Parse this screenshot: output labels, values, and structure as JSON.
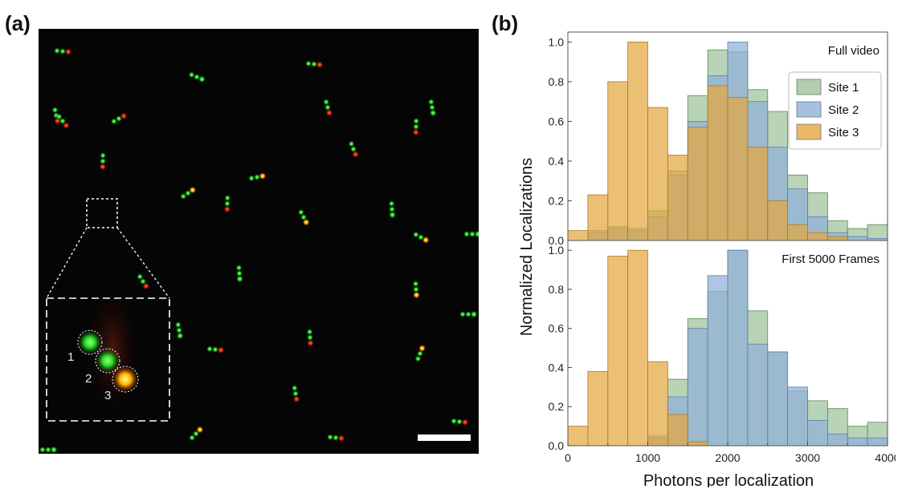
{
  "panel_a": {
    "label": "(a)",
    "inset_site_labels": [
      "1",
      "2",
      "3"
    ]
  },
  "panel_b": {
    "label": "(b)"
  },
  "colors": {
    "site1": "#9ec29a",
    "site2": "#8fb0d9",
    "site3": "#e3a63e",
    "background_microscopy": "#050505"
  },
  "chart_data": [
    {
      "type": "bar",
      "title": "Full video",
      "xlabel": "Photons per localization",
      "ylabel": "Normalized Localizations",
      "xlim": [
        0,
        4000
      ],
      "ylim": [
        0,
        1.05
      ],
      "bin_edges": [
        0,
        250,
        500,
        750,
        1000,
        1250,
        1500,
        1750,
        2000,
        2250,
        2500,
        2750,
        3000,
        3250,
        3500,
        3750,
        4000
      ],
      "x_ticks": [
        "0",
        "1000",
        "2000",
        "3000",
        "4000"
      ],
      "y_ticks": [
        "0.0",
        "0.2",
        "0.4",
        "0.6",
        "0.8",
        "1.0"
      ],
      "legend_position": "upper-right",
      "series": [
        {
          "name": "Site 1",
          "values": [
            0.0,
            0.05,
            0.07,
            0.06,
            0.15,
            0.35,
            0.73,
            0.96,
            0.95,
            0.76,
            0.65,
            0.33,
            0.24,
            0.1,
            0.06,
            0.08,
            0.02
          ]
        },
        {
          "name": "Site 2",
          "values": [
            0.0,
            0.04,
            0.06,
            0.05,
            0.12,
            0.33,
            0.6,
            0.83,
            1.0,
            0.7,
            0.47,
            0.26,
            0.12,
            0.04,
            0.02,
            0.01,
            0.0
          ]
        },
        {
          "name": "Site 3",
          "values": [
            0.05,
            0.23,
            0.8,
            1.0,
            0.67,
            0.43,
            0.57,
            0.78,
            0.72,
            0.47,
            0.2,
            0.08,
            0.04,
            0.02,
            0.0,
            0.0,
            0.0
          ]
        }
      ]
    },
    {
      "type": "bar",
      "title": "First 5000 Frames",
      "xlabel": "Photons per localization",
      "ylabel": "Normalized Localizations",
      "xlim": [
        0,
        4000
      ],
      "ylim": [
        0,
        1.05
      ],
      "bin_edges": [
        0,
        250,
        500,
        750,
        1000,
        1250,
        1500,
        1750,
        2000,
        2250,
        2500,
        2750,
        3000,
        3250,
        3500,
        3750,
        4000
      ],
      "x_ticks": [
        "0",
        "1000",
        "2000",
        "3000",
        "4000"
      ],
      "y_ticks": [
        "0.0",
        "0.2",
        "0.4",
        "0.6",
        "0.8",
        "1.0"
      ],
      "series": [
        {
          "name": "Site 1",
          "values": [
            0.0,
            0.0,
            0.0,
            0.0,
            0.05,
            0.34,
            0.65,
            0.79,
            1.0,
            0.69,
            0.48,
            0.28,
            0.23,
            0.19,
            0.1,
            0.12,
            0.04
          ]
        },
        {
          "name": "Site 2",
          "values": [
            0.0,
            0.0,
            0.0,
            0.0,
            0.04,
            0.25,
            0.6,
            0.87,
            1.0,
            0.52,
            0.48,
            0.3,
            0.13,
            0.06,
            0.04,
            0.04,
            0.01
          ]
        },
        {
          "name": "Site 3",
          "values": [
            0.1,
            0.38,
            0.97,
            1.0,
            0.43,
            0.16,
            0.02,
            0.0,
            0.0,
            0.0,
            0.0,
            0.0,
            0.0,
            0.0,
            0.0,
            0.0,
            0.0
          ]
        }
      ]
    }
  ]
}
